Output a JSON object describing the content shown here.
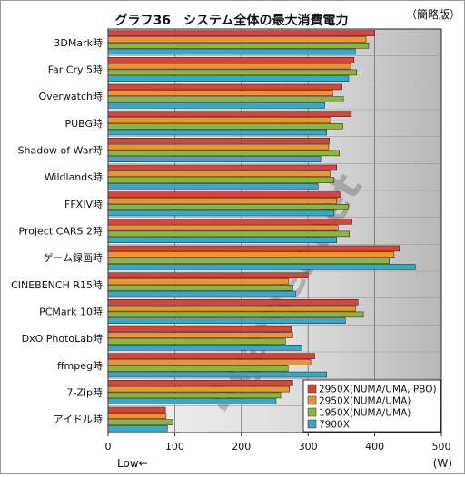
{
  "chart_data": {
    "type": "bar",
    "orientation": "horizontal",
    "title": "グラフ36　システム全体の最大消費電力",
    "subtitle": "（簡略版）",
    "xlabel_left": "Low←",
    "xunit": "(W)",
    "xlim": [
      0,
      500
    ],
    "xticks": [
      0,
      100,
      200,
      300,
      400,
      500
    ],
    "grid": true,
    "legend_position": "bottom-right",
    "watermark": "4gamer.net",
    "categories": [
      "3DMark時",
      "Far Cry 5時",
      "Overwatch時",
      "PUBG時",
      "Shadow of War時",
      "Wildlands時",
      "FFXIV時",
      "Project CARS 2時",
      "ゲーム録画時",
      "CINEBENCH R15時",
      "PCMark 10時",
      "DxO PhotoLab時",
      "ffmpeg時",
      "7-Zip時",
      "アイドル時"
    ],
    "series": [
      {
        "name": "2950X(NUMA/UMA, PBO)",
        "color": "#d9443a",
        "values": [
          400,
          369,
          351,
          365,
          332,
          343,
          349,
          366,
          437,
          300,
          375,
          275,
          310,
          277,
          86
        ]
      },
      {
        "name": "2950X(NUMA/UMA)",
        "color": "#f0922e",
        "values": [
          387,
          364,
          337,
          334,
          331,
          333,
          343,
          345,
          429,
          271,
          371,
          277,
          304,
          272,
          87
        ]
      },
      {
        "name": "1950X(NUMA/UMA)",
        "color": "#8db53c",
        "values": [
          391,
          373,
          353,
          352,
          347,
          339,
          360,
          362,
          422,
          277,
          383,
          266,
          270,
          259,
          97
        ]
      },
      {
        "name": "7900X",
        "color": "#36a8c8",
        "values": [
          371,
          361,
          325,
          328,
          319,
          315,
          339,
          343,
          461,
          281,
          356,
          291,
          328,
          252,
          89
        ]
      }
    ]
  }
}
